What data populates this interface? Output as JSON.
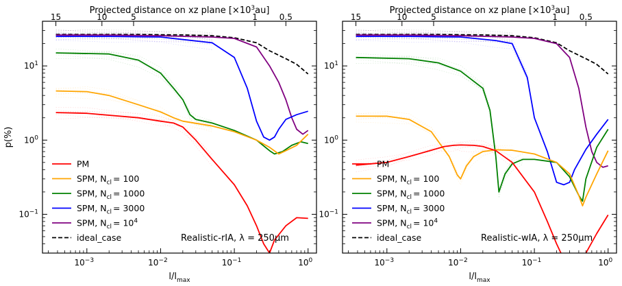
{
  "figure": {
    "ylabel": "p(%)",
    "legend_location": "lower-left",
    "legend_entries": [
      {
        "key": "pm",
        "label": "PM",
        "color": "#ff0000",
        "dashed": false
      },
      {
        "key": "n100",
        "label": "SPM, N",
        "sub": "cl",
        "suffix": "= 100",
        "color": "#ffa500",
        "dashed": false
      },
      {
        "key": "n1000",
        "label": "SPM, N",
        "sub": "cl",
        "suffix": "= 1000",
        "color": "#008000",
        "dashed": false
      },
      {
        "key": "n3000",
        "label": "SPM, N",
        "sub": "cl",
        "suffix": "= 3000",
        "color": "#0000ff",
        "dashed": false
      },
      {
        "key": "n1e4",
        "label": "SPM, N",
        "sub": "cl",
        "suffix": "= 10",
        "sup": "4",
        "color": "#800080",
        "dashed": false
      },
      {
        "key": "ideal",
        "label": "ideal_case",
        "color": "#000000",
        "dashed": true
      }
    ]
  },
  "chart_data": [
    {
      "type": "line",
      "panel": "left",
      "title": "Projected distance on xz plane [×10³au]",
      "top_axis_label": "Projected distance on xz plane [×10",
      "top_axis_label_sup": "3",
      "top_axis_label_end": "au]",
      "top_ticks": [
        {
          "x": 0.00038,
          "label": "15"
        },
        {
          "x": 0.0016,
          "label": "10"
        },
        {
          "x": 0.0043,
          "label": "5"
        },
        {
          "x": 0.19,
          "label": "1"
        },
        {
          "x": 0.5,
          "label": "0.5"
        }
      ],
      "xlabel": "l/l",
      "xlabel_sub": "max",
      "ylabel": "p(%)",
      "xscale": "log",
      "yscale": "log",
      "xlim": [
        0.00025,
        1.3
      ],
      "ylim": [
        0.03,
        40
      ],
      "xticks": [
        {
          "v": 0.001,
          "label": "10",
          "sup": "−3"
        },
        {
          "v": 0.01,
          "label": "10",
          "sup": "−2"
        },
        {
          "v": 0.1,
          "label": "10",
          "sup": "−1"
        },
        {
          "v": 1,
          "label": "10",
          "sup": "0"
        }
      ],
      "yticks": [
        {
          "v": 0.1,
          "label": "10",
          "sup": "−1"
        },
        {
          "v": 1,
          "label": "10",
          "sup": "0"
        },
        {
          "v": 10,
          "label": "10",
          "sup": "1"
        }
      ],
      "annotation": "Realistic-rIA, λ = 250μm",
      "series": [
        {
          "key": "ideal",
          "name": "ideal_case",
          "x": [
            0.00038,
            0.001,
            0.005,
            0.02,
            0.05,
            0.1,
            0.2,
            0.3,
            0.5,
            0.7,
            1.0
          ],
          "y": [
            26.5,
            26.5,
            26.5,
            26.2,
            25.5,
            24,
            20.5,
            16,
            12.5,
            10.5,
            7.8
          ]
        },
        {
          "key": "n1e4",
          "name": "SPM, N_cl = 10^4",
          "x": [
            0.00038,
            0.002,
            0.01,
            0.05,
            0.1,
            0.2,
            0.3,
            0.4,
            0.5,
            0.6,
            0.7,
            0.85,
            1.0
          ],
          "y": [
            26,
            26,
            25.5,
            24.5,
            23.5,
            18,
            10,
            6,
            3.5,
            2.0,
            1.4,
            1.2,
            1.35
          ]
        },
        {
          "key": "n3000",
          "name": "SPM, N_cl = 3000",
          "x": [
            0.00038,
            0.002,
            0.01,
            0.05,
            0.1,
            0.15,
            0.2,
            0.25,
            0.3,
            0.35,
            0.4,
            0.5,
            0.7,
            1.0
          ],
          "y": [
            25,
            25,
            24.5,
            20.5,
            13,
            5,
            1.8,
            1.1,
            1.0,
            1.1,
            1.4,
            1.9,
            2.2,
            2.45
          ]
        },
        {
          "key": "n1000",
          "name": "SPM, N_cl = 1000",
          "x": [
            0.00038,
            0.002,
            0.005,
            0.01,
            0.015,
            0.02,
            0.025,
            0.03,
            0.05,
            0.1,
            0.2,
            0.3,
            0.35,
            0.45,
            0.6,
            0.8,
            1.0
          ],
          "y": [
            15,
            14.5,
            12,
            8,
            5,
            3.5,
            2.2,
            1.9,
            1.7,
            1.35,
            1.0,
            0.72,
            0.65,
            0.7,
            0.85,
            0.95,
            0.9
          ]
        },
        {
          "key": "n100",
          "name": "SPM, N_cl = 100",
          "x": [
            0.00038,
            0.001,
            0.002,
            0.005,
            0.01,
            0.015,
            0.02,
            0.05,
            0.1,
            0.2,
            0.3,
            0.4,
            0.5,
            0.7,
            1.0
          ],
          "y": [
            4.6,
            4.5,
            4.0,
            3.0,
            2.4,
            2.0,
            1.8,
            1.55,
            1.3,
            1.0,
            0.8,
            0.65,
            0.72,
            0.85,
            1.2
          ]
        },
        {
          "key": "pm",
          "name": "PM",
          "x": [
            0.00038,
            0.001,
            0.005,
            0.01,
            0.015,
            0.02,
            0.03,
            0.05,
            0.1,
            0.15,
            0.2,
            0.25,
            0.3,
            0.35,
            0.5,
            0.7,
            1.0
          ],
          "y": [
            2.35,
            2.3,
            2.0,
            1.8,
            1.7,
            1.5,
            1.0,
            0.55,
            0.25,
            0.13,
            0.07,
            0.04,
            0.03,
            0.045,
            0.07,
            0.09,
            0.088
          ]
        }
      ]
    },
    {
      "type": "line",
      "panel": "right",
      "title": "Projected distance on xz plane [×10³au]",
      "top_axis_label": "Projected distance on xz plane [×10",
      "top_axis_label_sup": "3",
      "top_axis_label_end": "au]",
      "top_ticks": [
        {
          "x": 0.00038,
          "label": "15"
        },
        {
          "x": 0.0016,
          "label": "10"
        },
        {
          "x": 0.0043,
          "label": "5"
        },
        {
          "x": 0.19,
          "label": "1"
        },
        {
          "x": 0.5,
          "label": "0.5"
        }
      ],
      "xlabel": "l/l",
      "xlabel_sub": "max",
      "ylabel": "",
      "xscale": "log",
      "yscale": "log",
      "xlim": [
        0.00025,
        1.3
      ],
      "ylim": [
        0.03,
        40
      ],
      "xticks": [
        {
          "v": 0.001,
          "label": "10",
          "sup": "−3"
        },
        {
          "v": 0.01,
          "label": "10",
          "sup": "−2"
        },
        {
          "v": 0.1,
          "label": "10",
          "sup": "−1"
        },
        {
          "v": 1,
          "label": "10",
          "sup": "0"
        }
      ],
      "yticks": [
        {
          "v": 0.1,
          "label": "10",
          "sup": "−1"
        },
        {
          "v": 1,
          "label": "10",
          "sup": "0"
        },
        {
          "v": 10,
          "label": "10",
          "sup": "1"
        }
      ],
      "annotation": "Realistic-wIA, λ = 250μm",
      "series": [
        {
          "key": "ideal",
          "name": "ideal_case",
          "x": [
            0.00038,
            0.001,
            0.005,
            0.02,
            0.05,
            0.1,
            0.2,
            0.3,
            0.5,
            0.7,
            1.0
          ],
          "y": [
            26.5,
            26.5,
            26.5,
            26.2,
            25.5,
            24,
            20.5,
            16,
            12.5,
            10.5,
            7.8
          ]
        },
        {
          "key": "n1e4",
          "name": "SPM, N_cl = 10^4",
          "x": [
            0.00038,
            0.002,
            0.01,
            0.05,
            0.1,
            0.2,
            0.3,
            0.4,
            0.5,
            0.6,
            0.7,
            0.85,
            1.0
          ],
          "y": [
            26,
            26,
            25.5,
            24.5,
            23.5,
            20,
            13,
            5,
            1.5,
            0.7,
            0.5,
            0.43,
            0.45
          ]
        },
        {
          "key": "n3000",
          "name": "SPM, N_cl = 3000",
          "x": [
            0.00038,
            0.002,
            0.01,
            0.03,
            0.05,
            0.08,
            0.1,
            0.15,
            0.2,
            0.25,
            0.3,
            0.35,
            0.5,
            0.7,
            1.0
          ],
          "y": [
            25,
            25,
            24.5,
            22,
            20,
            7,
            2,
            0.7,
            0.27,
            0.25,
            0.27,
            0.4,
            0.75,
            1.2,
            1.9
          ]
        },
        {
          "key": "n1000",
          "name": "SPM, N_cl = 1000",
          "x": [
            0.00038,
            0.002,
            0.005,
            0.01,
            0.02,
            0.025,
            0.03,
            0.033,
            0.04,
            0.05,
            0.07,
            0.1,
            0.2,
            0.3,
            0.4,
            0.45,
            0.5,
            0.7,
            1.0
          ],
          "y": [
            13,
            12.5,
            11,
            8.5,
            5,
            2.5,
            0.6,
            0.2,
            0.35,
            0.48,
            0.55,
            0.55,
            0.5,
            0.32,
            0.18,
            0.15,
            0.3,
            0.8,
            1.4
          ]
        },
        {
          "key": "n100",
          "name": "SPM, N_cl = 100",
          "x": [
            0.00038,
            0.001,
            0.002,
            0.004,
            0.007,
            0.009,
            0.01,
            0.012,
            0.015,
            0.02,
            0.03,
            0.05,
            0.1,
            0.2,
            0.3,
            0.4,
            0.45,
            0.5,
            0.7,
            1.0
          ],
          "y": [
            2.1,
            2.1,
            1.9,
            1.3,
            0.6,
            0.34,
            0.3,
            0.45,
            0.6,
            0.7,
            0.74,
            0.73,
            0.65,
            0.5,
            0.35,
            0.18,
            0.13,
            0.17,
            0.35,
            0.72
          ]
        },
        {
          "key": "pm",
          "name": "PM",
          "x": [
            0.00038,
            0.001,
            0.002,
            0.004,
            0.006,
            0.008,
            0.01,
            0.015,
            0.02,
            0.03,
            0.05,
            0.1,
            0.15,
            0.2,
            0.25
          ],
          "y": [
            0.46,
            0.5,
            0.6,
            0.73,
            0.82,
            0.85,
            0.86,
            0.85,
            0.82,
            0.72,
            0.5,
            0.2,
            0.08,
            0.04,
            0.025
          ]
        },
        {
          "key": "pm",
          "name": "PM (tail)",
          "x": [
            0.5,
            0.7,
            1.0
          ],
          "y": [
            0.03,
            0.055,
            0.098
          ]
        }
      ]
    }
  ]
}
